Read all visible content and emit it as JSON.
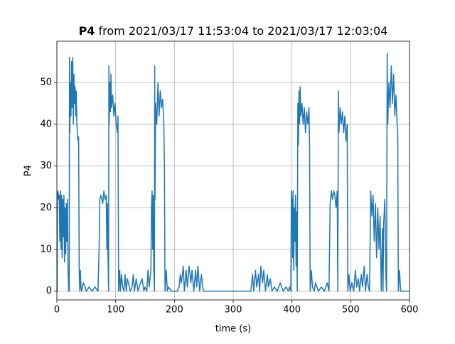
{
  "chart_data": {
    "type": "line",
    "title_bold": "P4",
    "title": "from 2021/03/17 11:53:04 to 2021/03/17 12:03:04",
    "xlabel": "time (s)",
    "ylabel": "P4",
    "color": "#1f77b4",
    "grid": true,
    "xlim": [
      0,
      600
    ],
    "ylim": [
      -2.1,
      59.9
    ],
    "xticks": [
      0,
      100,
      200,
      300,
      400,
      500,
      600
    ],
    "yticks": [
      0,
      10,
      20,
      30,
      40,
      50
    ],
    "x": [
      0,
      0.5,
      1,
      2,
      3,
      4,
      5,
      6,
      7,
      8,
      9,
      10,
      11,
      12,
      13,
      14,
      15,
      16,
      17,
      18,
      19,
      20,
      21,
      21.5,
      22,
      23,
      24,
      25,
      26,
      27,
      28,
      29,
      30,
      31,
      32,
      33,
      34,
      35,
      36,
      37,
      38,
      39,
      40,
      41,
      42,
      45,
      48,
      50,
      55,
      60,
      65,
      70,
      72,
      73,
      75,
      78,
      80,
      82,
      84,
      85,
      86,
      87,
      88,
      88.5,
      89,
      90,
      91,
      92,
      93,
      95,
      97,
      99,
      101,
      103,
      104,
      105,
      107,
      108,
      110,
      112,
      114,
      116,
      118,
      120,
      125,
      128,
      130,
      132,
      135,
      138,
      140,
      145,
      148,
      150,
      153,
      155,
      157,
      160,
      161,
      162,
      163,
      164,
      165,
      166,
      166.5,
      167,
      168,
      170,
      172,
      174,
      176,
      178,
      180,
      182,
      183,
      184,
      186,
      188,
      190,
      195,
      200,
      205,
      208,
      210,
      212,
      215,
      217,
      220,
      222,
      225,
      228,
      230,
      233,
      236,
      238,
      240,
      243,
      246,
      248,
      250,
      330,
      333,
      335,
      338,
      340,
      343,
      345,
      347,
      350,
      352,
      355,
      358,
      360,
      363,
      366,
      370,
      375,
      380,
      385,
      390,
      394,
      396,
      398,
      399,
      400,
      401,
      402,
      403,
      404,
      405,
      406,
      407,
      408,
      409,
      410,
      411,
      412,
      413,
      414,
      415,
      417,
      419,
      421,
      423,
      425,
      427,
      429,
      430,
      431,
      433,
      435,
      438,
      440,
      445,
      450,
      455,
      460,
      463,
      465,
      467,
      469,
      471,
      473,
      475,
      477,
      478,
      479,
      480,
      482,
      484,
      486,
      488,
      490,
      492,
      494,
      495,
      497,
      499,
      502,
      505,
      508,
      510,
      513,
      515,
      518,
      520,
      523,
      525,
      528,
      530,
      532,
      534,
      536,
      538,
      540,
      542,
      544,
      546,
      548,
      550,
      552,
      554,
      555,
      556,
      558,
      560,
      561,
      562,
      563,
      565,
      567,
      569,
      571,
      573,
      575,
      577,
      579,
      580,
      581,
      583,
      585,
      590,
      600
    ],
    "values": [
      0,
      0,
      23,
      24,
      22,
      23,
      12,
      24,
      10,
      23,
      8,
      22,
      13,
      23,
      7,
      20,
      9,
      21,
      12,
      22,
      6,
      0,
      0,
      56,
      38,
      50,
      42,
      55,
      44,
      56,
      40,
      52,
      45,
      49,
      42,
      48,
      40,
      38,
      36,
      37,
      5,
      0,
      5,
      1,
      0,
      2,
      1,
      0,
      1,
      0,
      1,
      0,
      11,
      22,
      23,
      21,
      24,
      22,
      23,
      10,
      21,
      8,
      0,
      54,
      40,
      50,
      43,
      52,
      44,
      47,
      42,
      45,
      40,
      38,
      42,
      0,
      5,
      0,
      4,
      1,
      0,
      4,
      0,
      3,
      0,
      1,
      4,
      0,
      3,
      0,
      1,
      3,
      0,
      1,
      0,
      5,
      1,
      5,
      20,
      24,
      10,
      23,
      5,
      0,
      54,
      22,
      45,
      40,
      50,
      42,
      48,
      44,
      46,
      40,
      30,
      0,
      5,
      0,
      1,
      0,
      0,
      0,
      1,
      4,
      2,
      6,
      0,
      5,
      1,
      6,
      2,
      5,
      0,
      5,
      1,
      6,
      0,
      4,
      1,
      0,
      0,
      4,
      0,
      5,
      1,
      4,
      0,
      6,
      2,
      5,
      0,
      4,
      1,
      3,
      0,
      1,
      0,
      2,
      0,
      1,
      0,
      1,
      0,
      24,
      22,
      8,
      24,
      5,
      20,
      12,
      23,
      6,
      19,
      0,
      45,
      35,
      48,
      40,
      49,
      42,
      45,
      40,
      44,
      38,
      43,
      40,
      44,
      35,
      0,
      5,
      1,
      0,
      2,
      0,
      1,
      0,
      2,
      0,
      21,
      24,
      22,
      24,
      23,
      20,
      24,
      0,
      48,
      38,
      44,
      40,
      43,
      38,
      42,
      36,
      40,
      0,
      4,
      0,
      2,
      0,
      5,
      1,
      3,
      0,
      4,
      1,
      6,
      0,
      4,
      1,
      0,
      24,
      18,
      23,
      12,
      21,
      8,
      20,
      10,
      18,
      0,
      15,
      0,
      16,
      22,
      3,
      0,
      57,
      40,
      50,
      44,
      54,
      45,
      52,
      42,
      47,
      40,
      38,
      0,
      5,
      0,
      0,
      0
    ]
  }
}
